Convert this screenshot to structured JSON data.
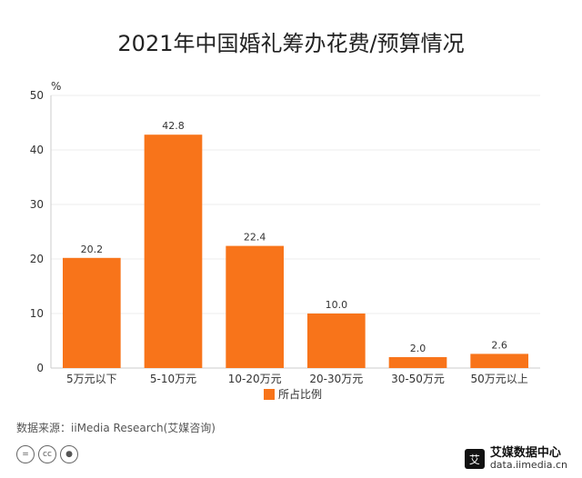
{
  "title": "2021年中国婚礼筹办花费/预算情况",
  "source": "数据来源：iiMedia Research(艾媒咨询)",
  "brand": {
    "name": "艾媒数据中心",
    "url": "data.iimedia.cn",
    "logo_char": "艾"
  },
  "cc_icons": [
    "cc-equals-icon",
    "cc-icon",
    "cc-person-icon"
  ],
  "colors": {
    "bar": "#F8741A",
    "axis": "#cccccc",
    "grid": "#eeeeee",
    "text": "#333333"
  },
  "chart_data": {
    "type": "bar",
    "title": "2021年中国婚礼筹办花费/预算情况",
    "ylabel": "%",
    "categories": [
      "5万元以下",
      "5-10万元",
      "10-20万元",
      "20-30万元",
      "30-50万元",
      "50万元以上"
    ],
    "series": [
      {
        "name": "所占比例",
        "values": [
          20.2,
          42.8,
          22.4,
          10.0,
          2.0,
          2.6
        ]
      }
    ],
    "value_labels": [
      "20.2",
      "42.8",
      "22.4",
      "10.0",
      "2.0",
      "2.6"
    ],
    "ylim": [
      0,
      50
    ],
    "yticks": [
      0,
      10,
      20,
      30,
      40,
      50
    ],
    "grid": true,
    "legend": "bottom-center"
  }
}
